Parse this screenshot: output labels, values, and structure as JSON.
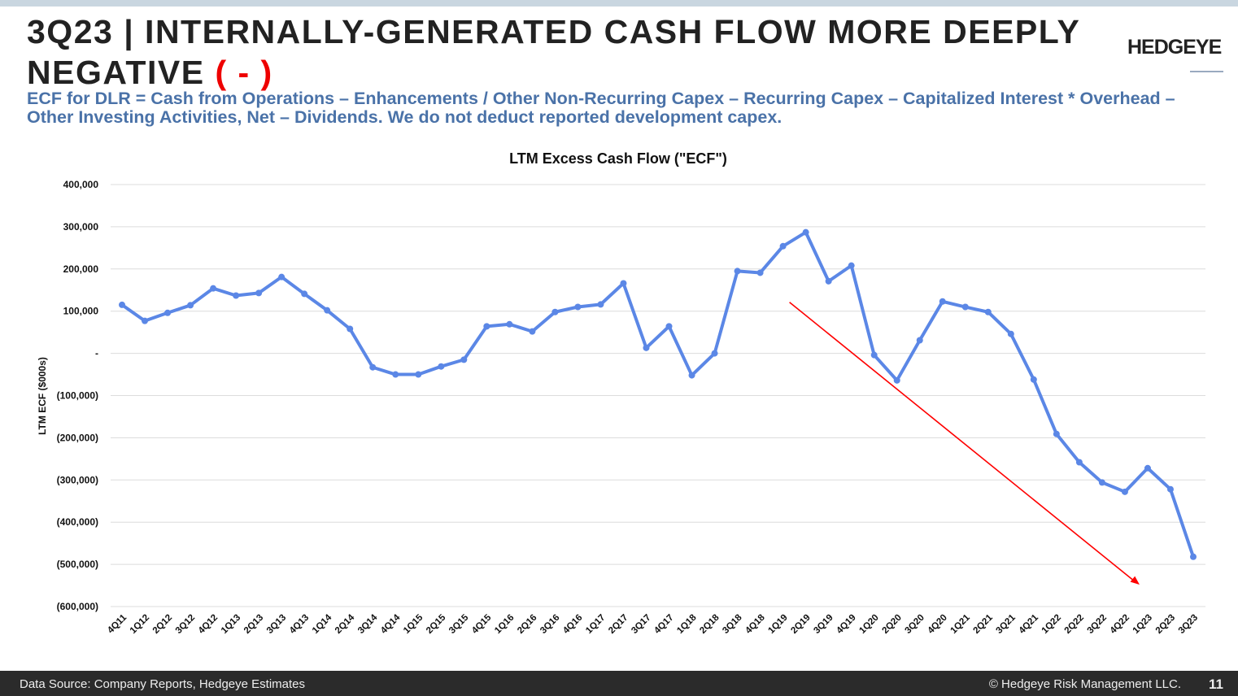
{
  "slide": {
    "title_main": "3Q23 | INTERNALLY-GENERATED CASH FLOW MORE DEEPLY NEGATIVE",
    "title_flag": "( - )",
    "subtitle": "ECF for DLR = Cash from Operations – Enhancements / Other Non-Recurring Capex – Recurring Capex – Capitalized Interest * Overhead – Other Investing Activities, Net – Dividends. We do not deduct reported development capex.",
    "logo": "HEDGEYE",
    "footer_source": "Data Source: Company Reports, Hedgeye Estimates",
    "footer_copyright": "© Hedgeye Risk Management LLC.",
    "page_number": "11"
  },
  "colors": {
    "line": "#5b87e6",
    "arrow": "#ff0000",
    "title_flag": "#ee0000",
    "subtitle": "#4a72a8"
  },
  "chart_data": {
    "type": "line",
    "title": "LTM Excess Cash Flow (\"ECF\")",
    "xlabel": "",
    "ylabel": "LTM ECF ($000s)",
    "ylim": [
      -600000,
      400000
    ],
    "yticks": [
      400000,
      300000,
      200000,
      100000,
      0,
      -100000,
      -200000,
      -300000,
      -400000,
      -500000,
      -600000
    ],
    "ytick_labels": [
      "400,000",
      "300,000",
      "200,000",
      "100,000",
      "-",
      "(100,000)",
      "(200,000)",
      "(300,000)",
      "(400,000)",
      "(500,000)",
      "(600,000)"
    ],
    "grid": true,
    "legend": "none",
    "categories": [
      "4Q11",
      "1Q12",
      "2Q12",
      "3Q12",
      "4Q12",
      "1Q13",
      "2Q13",
      "3Q13",
      "4Q13",
      "1Q14",
      "2Q14",
      "3Q14",
      "4Q14",
      "1Q15",
      "2Q15",
      "3Q15",
      "4Q15",
      "1Q16",
      "2Q16",
      "3Q16",
      "4Q16",
      "1Q17",
      "2Q17",
      "3Q17",
      "4Q17",
      "1Q18",
      "2Q18",
      "3Q18",
      "4Q18",
      "1Q19",
      "2Q19",
      "3Q19",
      "4Q19",
      "1Q20",
      "2Q20",
      "3Q20",
      "4Q20",
      "1Q21",
      "2Q21",
      "3Q21",
      "4Q21",
      "1Q22",
      "2Q22",
      "3Q22",
      "4Q22",
      "1Q23",
      "2Q23",
      "3Q23"
    ],
    "values": [
      115000,
      77000,
      96000,
      114000,
      154000,
      137000,
      143000,
      181000,
      141000,
      102000,
      58000,
      -33000,
      -50000,
      -50000,
      -31000,
      -15000,
      64000,
      69000,
      52000,
      98000,
      110000,
      116000,
      166000,
      13000,
      64000,
      -52000,
      0,
      195000,
      191000,
      254000,
      287000,
      171000,
      208000,
      -4000,
      -64000,
      31000,
      123000,
      110000,
      98000,
      46000,
      -62000,
      -191000,
      -258000,
      -306000,
      -328000,
      -272000,
      -322000,
      -482000
    ],
    "annotation": {
      "type": "trend-arrow",
      "from": [
        "1Q19",
        100000
      ],
      "to": [
        "1Q23",
        -550000
      ]
    }
  }
}
